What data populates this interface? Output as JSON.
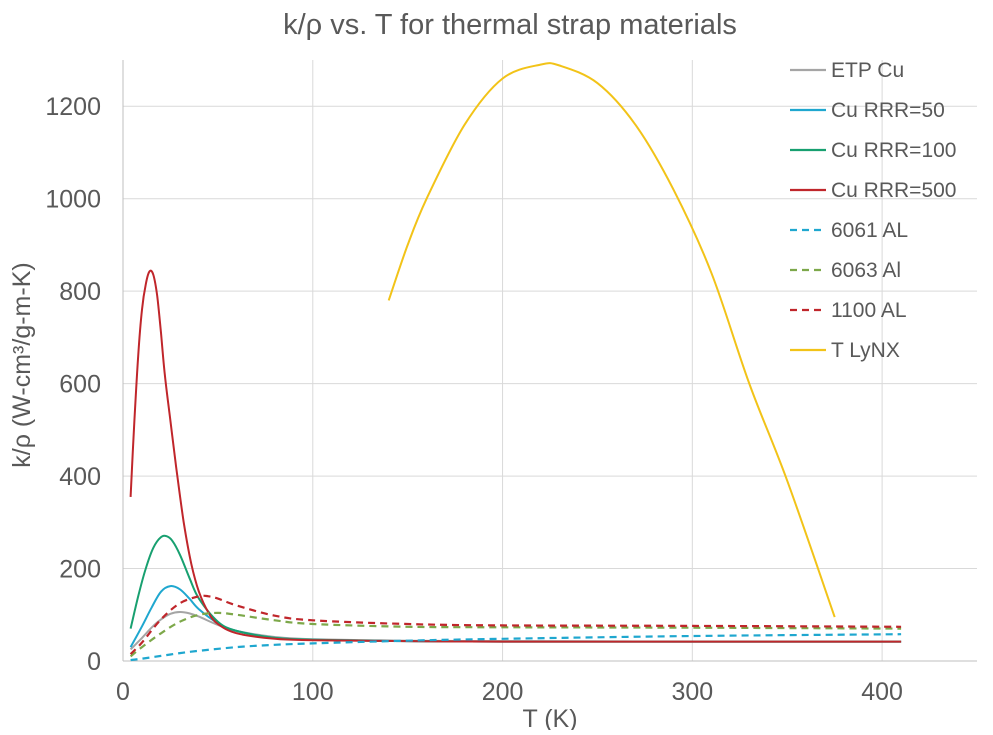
{
  "chart_data": {
    "type": "line",
    "title": "k/ρ vs. T for thermal strap materials",
    "xlabel": "T (K)",
    "ylabel": "k/ρ (W-cm³/g-m-K)",
    "xlim": [
      0,
      450
    ],
    "ylim": [
      0,
      1300
    ],
    "xticks": [
      0,
      100,
      200,
      300,
      400
    ],
    "yticks": [
      0,
      200,
      400,
      600,
      800,
      1000,
      1200
    ],
    "grid": true,
    "legend_position": "top-right",
    "series": [
      {
        "name": "ETP Cu",
        "color": "#a5a5a5",
        "dash": "solid",
        "x": [
          4,
          10,
          15,
          20,
          25,
          30,
          35,
          40,
          50,
          60,
          80,
          100,
          150,
          200,
          300,
          410
        ],
        "y": [
          25,
          50,
          72,
          90,
          102,
          106,
          103,
          96,
          78,
          65,
          52,
          47,
          44,
          43,
          42,
          42
        ]
      },
      {
        "name": "Cu RRR=50",
        "color": "#1fa7cf",
        "dash": "solid",
        "x": [
          4,
          10,
          15,
          20,
          25,
          30,
          35,
          40,
          50,
          60,
          80,
          100,
          150,
          200,
          300,
          410
        ],
        "y": [
          30,
          75,
          115,
          150,
          162,
          155,
          135,
          112,
          82,
          65,
          50,
          46,
          43,
          42,
          42,
          42
        ]
      },
      {
        "name": "Cu RRR=100",
        "color": "#18a070",
        "dash": "solid",
        "x": [
          4,
          8,
          12,
          16,
          20,
          23,
          26,
          30,
          35,
          40,
          50,
          60,
          80,
          100,
          150,
          200,
          300,
          410
        ],
        "y": [
          70,
          140,
          200,
          245,
          268,
          270,
          260,
          230,
          180,
          135,
          85,
          65,
          50,
          46,
          43,
          42,
          42,
          42
        ]
      },
      {
        "name": "Cu RRR=500",
        "color": "#c0262b",
        "dash": "solid",
        "x": [
          4,
          6,
          8,
          10,
          12,
          14,
          16,
          18,
          20,
          22,
          25,
          28,
          32,
          36,
          40,
          45,
          50,
          60,
          80,
          100,
          150,
          200,
          300,
          410
        ],
        "y": [
          355,
          520,
          660,
          760,
          815,
          843,
          835,
          790,
          710,
          620,
          520,
          420,
          300,
          210,
          150,
          105,
          80,
          60,
          48,
          45,
          43,
          42,
          42,
          42
        ]
      },
      {
        "name": "6061 AL",
        "color": "#1fa7cf",
        "dash": "dashed",
        "x": [
          4,
          10,
          20,
          30,
          40,
          60,
          80,
          100,
          150,
          200,
          300,
          410
        ],
        "y": [
          2,
          5,
          11,
          17,
          22,
          30,
          35,
          38,
          44,
          48,
          54,
          58
        ]
      },
      {
        "name": "6063 Al",
        "color": "#7da84a",
        "dash": "dashed",
        "x": [
          4,
          10,
          20,
          30,
          40,
          50,
          60,
          80,
          100,
          150,
          200,
          300,
          410
        ],
        "y": [
          10,
          30,
          60,
          85,
          100,
          104,
          100,
          88,
          80,
          74,
          73,
          72,
          70
        ]
      },
      {
        "name": "1100 AL",
        "color": "#c0262b",
        "dash": "dashed",
        "x": [
          4,
          10,
          20,
          30,
          40,
          45,
          50,
          60,
          80,
          100,
          150,
          200,
          300,
          410
        ],
        "y": [
          15,
          40,
          90,
          125,
          140,
          140,
          135,
          120,
          98,
          88,
          80,
          77,
          76,
          74
        ]
      },
      {
        "name": "T LyNX",
        "color": "#f2c318",
        "dash": "solid",
        "x": [
          140,
          150,
          160,
          180,
          200,
          220,
          230,
          250,
          270,
          290,
          310,
          330,
          350,
          375
        ],
        "y": [
          780,
          900,
          1000,
          1160,
          1260,
          1290,
          1288,
          1250,
          1160,
          1020,
          840,
          600,
          390,
          95
        ]
      }
    ]
  }
}
